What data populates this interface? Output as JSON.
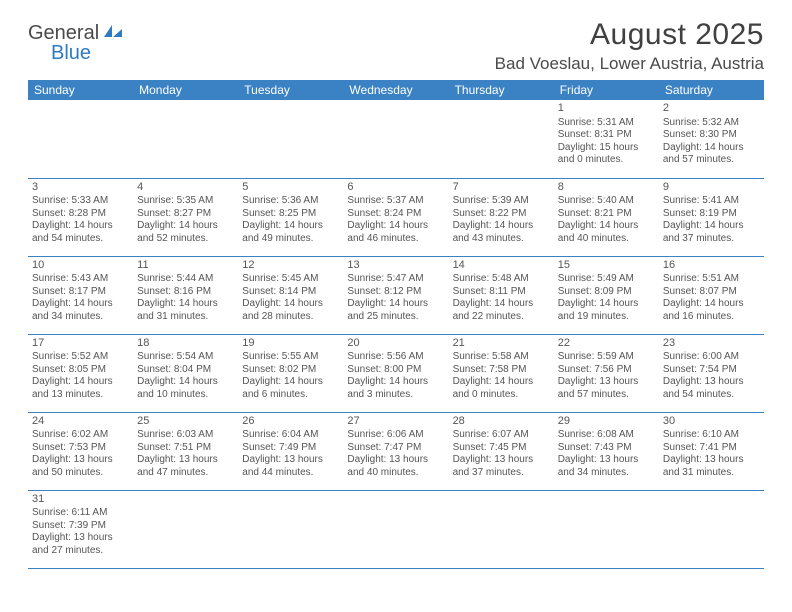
{
  "brand": {
    "word1": "General",
    "word2": "Blue"
  },
  "title": "August 2025",
  "location": "Bad Voeslau, Lower Austria, Austria",
  "colors": {
    "header_bg": "#3a82c4",
    "header_text": "#ffffff",
    "border": "#3a82c4",
    "text": "#555555",
    "title_text": "#404040"
  },
  "day_headers": [
    "Sunday",
    "Monday",
    "Tuesday",
    "Wednesday",
    "Thursday",
    "Friday",
    "Saturday"
  ],
  "weeks": [
    [
      null,
      null,
      null,
      null,
      null,
      {
        "n": "1",
        "sunrise": "5:31 AM",
        "sunset": "8:31 PM",
        "daylight": "15 hours and 0 minutes."
      },
      {
        "n": "2",
        "sunrise": "5:32 AM",
        "sunset": "8:30 PM",
        "daylight": "14 hours and 57 minutes."
      }
    ],
    [
      {
        "n": "3",
        "sunrise": "5:33 AM",
        "sunset": "8:28 PM",
        "daylight": "14 hours and 54 minutes."
      },
      {
        "n": "4",
        "sunrise": "5:35 AM",
        "sunset": "8:27 PM",
        "daylight": "14 hours and 52 minutes."
      },
      {
        "n": "5",
        "sunrise": "5:36 AM",
        "sunset": "8:25 PM",
        "daylight": "14 hours and 49 minutes."
      },
      {
        "n": "6",
        "sunrise": "5:37 AM",
        "sunset": "8:24 PM",
        "daylight": "14 hours and 46 minutes."
      },
      {
        "n": "7",
        "sunrise": "5:39 AM",
        "sunset": "8:22 PM",
        "daylight": "14 hours and 43 minutes."
      },
      {
        "n": "8",
        "sunrise": "5:40 AM",
        "sunset": "8:21 PM",
        "daylight": "14 hours and 40 minutes."
      },
      {
        "n": "9",
        "sunrise": "5:41 AM",
        "sunset": "8:19 PM",
        "daylight": "14 hours and 37 minutes."
      }
    ],
    [
      {
        "n": "10",
        "sunrise": "5:43 AM",
        "sunset": "8:17 PM",
        "daylight": "14 hours and 34 minutes."
      },
      {
        "n": "11",
        "sunrise": "5:44 AM",
        "sunset": "8:16 PM",
        "daylight": "14 hours and 31 minutes."
      },
      {
        "n": "12",
        "sunrise": "5:45 AM",
        "sunset": "8:14 PM",
        "daylight": "14 hours and 28 minutes."
      },
      {
        "n": "13",
        "sunrise": "5:47 AM",
        "sunset": "8:12 PM",
        "daylight": "14 hours and 25 minutes."
      },
      {
        "n": "14",
        "sunrise": "5:48 AM",
        "sunset": "8:11 PM",
        "daylight": "14 hours and 22 minutes."
      },
      {
        "n": "15",
        "sunrise": "5:49 AM",
        "sunset": "8:09 PM",
        "daylight": "14 hours and 19 minutes."
      },
      {
        "n": "16",
        "sunrise": "5:51 AM",
        "sunset": "8:07 PM",
        "daylight": "14 hours and 16 minutes."
      }
    ],
    [
      {
        "n": "17",
        "sunrise": "5:52 AM",
        "sunset": "8:05 PM",
        "daylight": "14 hours and 13 minutes."
      },
      {
        "n": "18",
        "sunrise": "5:54 AM",
        "sunset": "8:04 PM",
        "daylight": "14 hours and 10 minutes."
      },
      {
        "n": "19",
        "sunrise": "5:55 AM",
        "sunset": "8:02 PM",
        "daylight": "14 hours and 6 minutes."
      },
      {
        "n": "20",
        "sunrise": "5:56 AM",
        "sunset": "8:00 PM",
        "daylight": "14 hours and 3 minutes."
      },
      {
        "n": "21",
        "sunrise": "5:58 AM",
        "sunset": "7:58 PM",
        "daylight": "14 hours and 0 minutes."
      },
      {
        "n": "22",
        "sunrise": "5:59 AM",
        "sunset": "7:56 PM",
        "daylight": "13 hours and 57 minutes."
      },
      {
        "n": "23",
        "sunrise": "6:00 AM",
        "sunset": "7:54 PM",
        "daylight": "13 hours and 54 minutes."
      }
    ],
    [
      {
        "n": "24",
        "sunrise": "6:02 AM",
        "sunset": "7:53 PM",
        "daylight": "13 hours and 50 minutes."
      },
      {
        "n": "25",
        "sunrise": "6:03 AM",
        "sunset": "7:51 PM",
        "daylight": "13 hours and 47 minutes."
      },
      {
        "n": "26",
        "sunrise": "6:04 AM",
        "sunset": "7:49 PM",
        "daylight": "13 hours and 44 minutes."
      },
      {
        "n": "27",
        "sunrise": "6:06 AM",
        "sunset": "7:47 PM",
        "daylight": "13 hours and 40 minutes."
      },
      {
        "n": "28",
        "sunrise": "6:07 AM",
        "sunset": "7:45 PM",
        "daylight": "13 hours and 37 minutes."
      },
      {
        "n": "29",
        "sunrise": "6:08 AM",
        "sunset": "7:43 PM",
        "daylight": "13 hours and 34 minutes."
      },
      {
        "n": "30",
        "sunrise": "6:10 AM",
        "sunset": "7:41 PM",
        "daylight": "13 hours and 31 minutes."
      }
    ],
    [
      {
        "n": "31",
        "sunrise": "6:11 AM",
        "sunset": "7:39 PM",
        "daylight": "13 hours and 27 minutes."
      },
      null,
      null,
      null,
      null,
      null,
      null
    ]
  ],
  "labels": {
    "sunrise": "Sunrise:",
    "sunset": "Sunset:",
    "daylight": "Daylight:"
  }
}
